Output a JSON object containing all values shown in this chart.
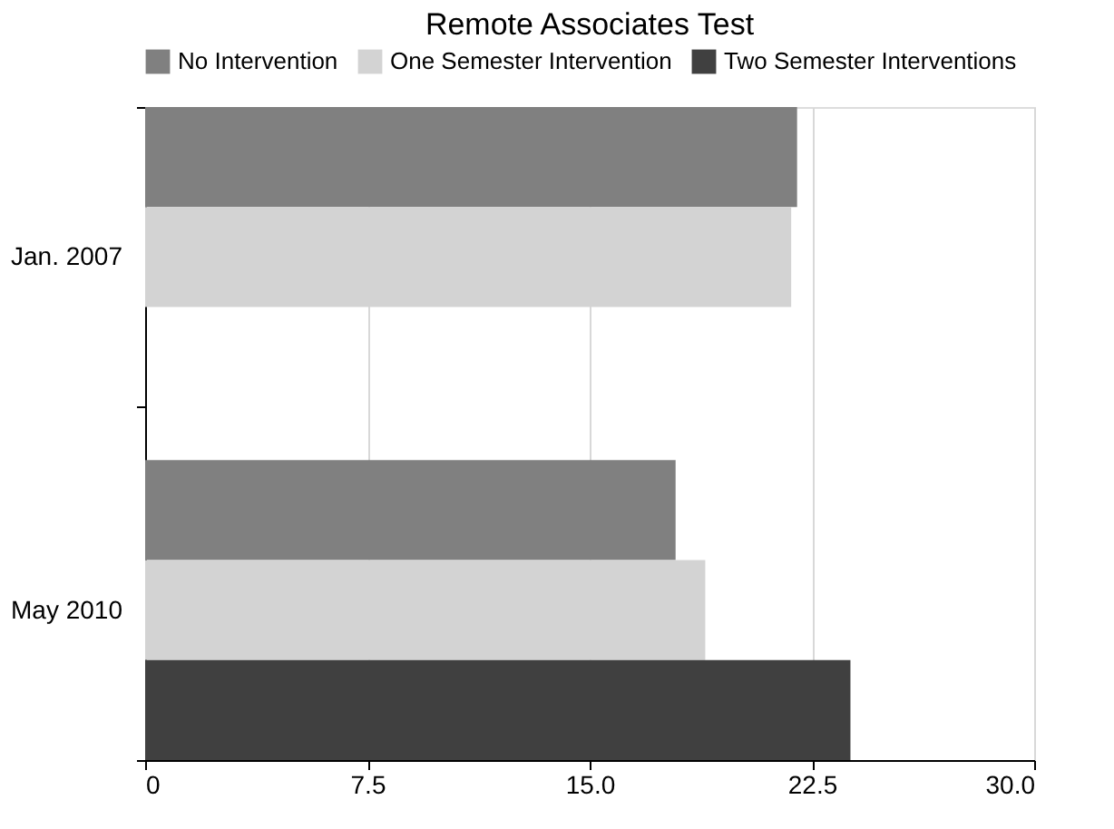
{
  "chart_data": {
    "type": "bar",
    "orientation": "horizontal",
    "title": "Remote Associates Test",
    "categories": [
      "Jan. 2007",
      "May 2010"
    ],
    "series": [
      {
        "name": "No Intervention",
        "color": "#808080",
        "values": [
          22.0,
          17.9
        ]
      },
      {
        "name": "One Semester Intervention",
        "color": "#d3d3d3",
        "values": [
          21.8,
          18.9
        ]
      },
      {
        "name": "Two Semester Interventions",
        "color": "#404040",
        "values": [
          null,
          23.8
        ]
      }
    ],
    "xlim": [
      0,
      30
    ],
    "xticks": [
      0,
      7.5,
      {
        "value": 15,
        "label": "15.0"
      },
      22.5,
      {
        "value": 30,
        "label": "30.0"
      }
    ],
    "grid": "x",
    "legend": "top"
  }
}
